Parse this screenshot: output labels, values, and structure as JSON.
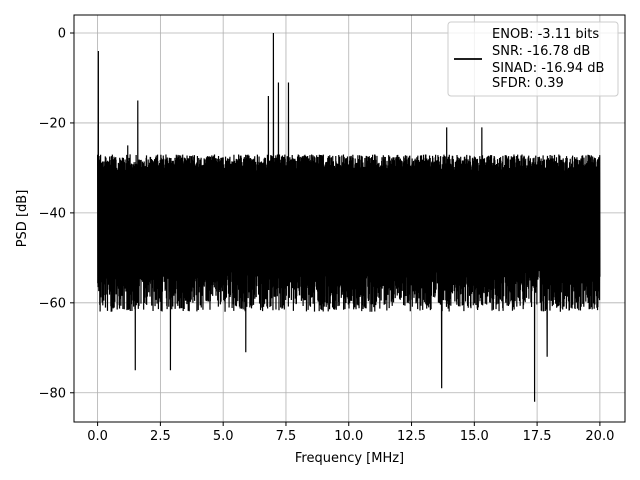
{
  "chart_data": {
    "type": "line",
    "xlabel": "Frequency [MHz]",
    "ylabel": "PSD [dB]",
    "xlim": [
      -0.94,
      21.0
    ],
    "ylim": [
      -86.5,
      4.0
    ],
    "xticks": [
      0.0,
      2.5,
      5.0,
      7.5,
      10.0,
      12.5,
      15.0,
      17.5,
      20.0
    ],
    "xtick_labels": [
      "0.0",
      "2.5",
      "5.0",
      "7.5",
      "10.0",
      "12.5",
      "15.0",
      "17.5",
      "20.0"
    ],
    "yticks": [
      0,
      -20,
      -40,
      -60,
      -80
    ],
    "ytick_labels": [
      "0",
      "−20",
      "−40",
      "−60",
      "−80"
    ],
    "grid": true,
    "legend_position": "upper-right",
    "line_color": "#000000",
    "series": [
      {
        "name": "ENOB: -3.11 bits\nSNR: -16.78 dB\nSINAD: -16.94 dB\nSFDR: 0.39",
        "noise_band": {
          "x_start": 0.0,
          "x_end": 20.0,
          "upper_envelope_db": -27,
          "lower_envelope_db": -62
        },
        "spikes": [
          {
            "x": 0.03,
            "y": -4
          },
          {
            "x": 1.2,
            "y": -25
          },
          {
            "x": 1.6,
            "y": -15
          },
          {
            "x": 6.8,
            "y": -14
          },
          {
            "x": 7.0,
            "y": 0
          },
          {
            "x": 7.2,
            "y": -11
          },
          {
            "x": 7.6,
            "y": -11
          },
          {
            "x": 13.9,
            "y": -21
          },
          {
            "x": 15.3,
            "y": -21
          }
        ],
        "dips": [
          {
            "x": 1.5,
            "y": -75
          },
          {
            "x": 2.9,
            "y": -75
          },
          {
            "x": 5.9,
            "y": -71
          },
          {
            "x": 13.7,
            "y": -79
          },
          {
            "x": 17.4,
            "y": -82
          },
          {
            "x": 17.9,
            "y": -72
          }
        ]
      }
    ],
    "legend_lines": [
      "ENOB: -3.11 bits",
      "SNR: -16.78 dB",
      "SINAD: -16.94 dB",
      "SFDR: 0.39"
    ]
  }
}
